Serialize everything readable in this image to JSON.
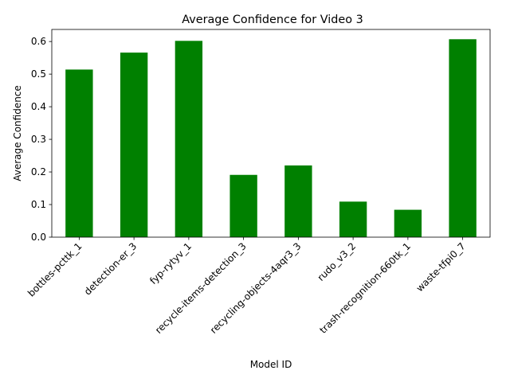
{
  "chart_data": {
    "type": "bar",
    "title": "Average Confidence for Video 3",
    "xlabel": "Model ID",
    "ylabel": "Average Confidence",
    "categories": [
      "bottles-pcttk_1",
      "detection-er_3",
      "fyp-rytyv_1",
      "recycle-items-detection_3",
      "recycling-objects-4aqr3_3",
      "rudo_v3_2",
      "trash-recognition-660tk_1",
      "waste-tfpi0_7"
    ],
    "values": [
      0.514,
      0.566,
      0.602,
      0.191,
      0.22,
      0.109,
      0.084,
      0.607
    ],
    "yticks": [
      "0.0",
      "0.1",
      "0.2",
      "0.3",
      "0.4",
      "0.5",
      "0.6"
    ],
    "ylim": [
      0,
      0.637
    ],
    "bar_color": "#008000",
    "grid": false,
    "legend": "none"
  }
}
